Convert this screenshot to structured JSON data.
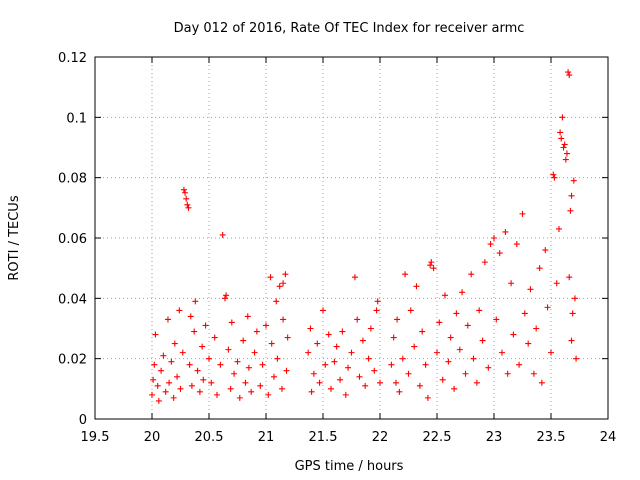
{
  "chart_data": {
    "type": "scatter",
    "title": "Day 012 of 2016, Rate Of TEC Index for receiver armc",
    "xlabel": "GPS time / hours",
    "ylabel": "ROTI / TECUs",
    "xlim": [
      19.5,
      24
    ],
    "ylim": [
      0,
      0.12
    ],
    "xticks": [
      "19.5",
      "20",
      "20.5",
      "21",
      "21.5",
      "22",
      "22.5",
      "23",
      "23.5",
      "24"
    ],
    "yticks": [
      "0",
      "0.02",
      "0.04",
      "0.06",
      "0.08",
      "0.1",
      "0.12"
    ],
    "grid": true,
    "marker": "plus",
    "series": [
      {
        "color": "#ff0000",
        "points": [
          [
            20.0,
            0.008
          ],
          [
            20.01,
            0.013
          ],
          [
            20.02,
            0.018
          ],
          [
            20.03,
            0.028
          ],
          [
            20.05,
            0.011
          ],
          [
            20.06,
            0.006
          ],
          [
            20.08,
            0.016
          ],
          [
            20.1,
            0.021
          ],
          [
            20.12,
            0.009
          ],
          [
            20.14,
            0.033
          ],
          [
            20.15,
            0.012
          ],
          [
            20.17,
            0.019
          ],
          [
            20.19,
            0.007
          ],
          [
            20.2,
            0.025
          ],
          [
            20.22,
            0.014
          ],
          [
            20.24,
            0.036
          ],
          [
            20.25,
            0.01
          ],
          [
            20.27,
            0.022
          ],
          [
            20.28,
            0.076
          ],
          [
            20.29,
            0.075
          ],
          [
            20.3,
            0.073
          ],
          [
            20.31,
            0.071
          ],
          [
            20.32,
            0.07
          ],
          [
            20.33,
            0.018
          ],
          [
            20.34,
            0.034
          ],
          [
            20.35,
            0.011
          ],
          [
            20.37,
            0.029
          ],
          [
            20.38,
            0.039
          ],
          [
            20.4,
            0.016
          ],
          [
            20.42,
            0.009
          ],
          [
            20.44,
            0.024
          ],
          [
            20.45,
            0.013
          ],
          [
            20.47,
            0.031
          ],
          [
            20.5,
            0.02
          ],
          [
            20.52,
            0.012
          ],
          [
            20.55,
            0.027
          ],
          [
            20.57,
            0.008
          ],
          [
            20.6,
            0.018
          ],
          [
            20.62,
            0.061
          ],
          [
            20.64,
            0.04
          ],
          [
            20.65,
            0.041
          ],
          [
            20.67,
            0.023
          ],
          [
            20.69,
            0.01
          ],
          [
            20.7,
            0.032
          ],
          [
            20.72,
            0.015
          ],
          [
            20.75,
            0.019
          ],
          [
            20.77,
            0.007
          ],
          [
            20.8,
            0.026
          ],
          [
            20.82,
            0.012
          ],
          [
            20.84,
            0.034
          ],
          [
            20.85,
            0.017
          ],
          [
            20.87,
            0.009
          ],
          [
            20.9,
            0.022
          ],
          [
            20.92,
            0.029
          ],
          [
            20.95,
            0.011
          ],
          [
            20.97,
            0.018
          ],
          [
            21.0,
            0.031
          ],
          [
            21.02,
            0.008
          ],
          [
            21.04,
            0.047
          ],
          [
            21.05,
            0.025
          ],
          [
            21.07,
            0.014
          ],
          [
            21.09,
            0.039
          ],
          [
            21.1,
            0.02
          ],
          [
            21.12,
            0.044
          ],
          [
            21.14,
            0.01
          ],
          [
            21.15,
            0.033
          ],
          [
            21.17,
            0.048
          ],
          [
            21.18,
            0.016
          ],
          [
            21.19,
            0.027
          ],
          [
            21.15,
            0.045
          ],
          [
            21.37,
            0.022
          ],
          [
            21.39,
            0.03
          ],
          [
            21.4,
            0.009
          ],
          [
            21.42,
            0.015
          ],
          [
            21.45,
            0.025
          ],
          [
            21.47,
            0.012
          ],
          [
            21.5,
            0.036
          ],
          [
            21.52,
            0.018
          ],
          [
            21.55,
            0.028
          ],
          [
            21.57,
            0.01
          ],
          [
            21.6,
            0.019
          ],
          [
            21.62,
            0.024
          ],
          [
            21.65,
            0.013
          ],
          [
            21.67,
            0.029
          ],
          [
            21.7,
            0.008
          ],
          [
            21.72,
            0.017
          ],
          [
            21.75,
            0.022
          ],
          [
            21.78,
            0.047
          ],
          [
            21.8,
            0.033
          ],
          [
            21.82,
            0.014
          ],
          [
            21.85,
            0.026
          ],
          [
            21.87,
            0.011
          ],
          [
            21.9,
            0.02
          ],
          [
            21.92,
            0.03
          ],
          [
            21.95,
            0.016
          ],
          [
            21.97,
            0.036
          ],
          [
            21.98,
            0.039
          ],
          [
            22.0,
            0.012
          ],
          [
            22.1,
            0.018
          ],
          [
            22.12,
            0.027
          ],
          [
            22.14,
            0.012
          ],
          [
            22.15,
            0.033
          ],
          [
            22.17,
            0.009
          ],
          [
            22.2,
            0.02
          ],
          [
            22.22,
            0.048
          ],
          [
            22.25,
            0.015
          ],
          [
            22.27,
            0.036
          ],
          [
            22.3,
            0.024
          ],
          [
            22.32,
            0.044
          ],
          [
            22.35,
            0.011
          ],
          [
            22.37,
            0.029
          ],
          [
            22.4,
            0.018
          ],
          [
            22.42,
            0.007
          ],
          [
            22.44,
            0.051
          ],
          [
            22.45,
            0.052
          ],
          [
            22.47,
            0.05
          ],
          [
            22.5,
            0.022
          ],
          [
            22.52,
            0.032
          ],
          [
            22.55,
            0.013
          ],
          [
            22.57,
            0.041
          ],
          [
            22.6,
            0.019
          ],
          [
            22.62,
            0.027
          ],
          [
            22.65,
            0.01
          ],
          [
            22.67,
            0.035
          ],
          [
            22.7,
            0.023
          ],
          [
            22.72,
            0.042
          ],
          [
            22.75,
            0.015
          ],
          [
            22.77,
            0.031
          ],
          [
            22.8,
            0.048
          ],
          [
            22.82,
            0.02
          ],
          [
            22.85,
            0.012
          ],
          [
            22.87,
            0.036
          ],
          [
            22.9,
            0.026
          ],
          [
            22.92,
            0.052
          ],
          [
            22.95,
            0.017
          ],
          [
            22.97,
            0.058
          ],
          [
            23.0,
            0.06
          ],
          [
            23.02,
            0.033
          ],
          [
            23.05,
            0.055
          ],
          [
            23.07,
            0.022
          ],
          [
            23.1,
            0.062
          ],
          [
            23.12,
            0.015
          ],
          [
            23.15,
            0.045
          ],
          [
            23.17,
            0.028
          ],
          [
            23.2,
            0.058
          ],
          [
            23.22,
            0.018
          ],
          [
            23.25,
            0.068
          ],
          [
            23.27,
            0.035
          ],
          [
            23.3,
            0.025
          ],
          [
            23.32,
            0.043
          ],
          [
            23.35,
            0.015
          ],
          [
            23.37,
            0.03
          ],
          [
            23.4,
            0.05
          ],
          [
            23.42,
            0.012
          ],
          [
            23.45,
            0.056
          ],
          [
            23.47,
            0.037
          ],
          [
            23.5,
            0.022
          ],
          [
            23.52,
            0.081
          ],
          [
            23.53,
            0.08
          ],
          [
            23.55,
            0.045
          ],
          [
            23.57,
            0.063
          ],
          [
            23.58,
            0.095
          ],
          [
            23.59,
            0.093
          ],
          [
            23.6,
            0.1
          ],
          [
            23.61,
            0.09
          ],
          [
            23.62,
            0.091
          ],
          [
            23.63,
            0.086
          ],
          [
            23.64,
            0.088
          ],
          [
            23.65,
            0.115
          ],
          [
            23.66,
            0.114
          ],
          [
            23.67,
            0.069
          ],
          [
            23.68,
            0.074
          ],
          [
            23.69,
            0.035
          ],
          [
            23.7,
            0.079
          ],
          [
            23.71,
            0.04
          ],
          [
            23.72,
            0.02
          ],
          [
            23.66,
            0.047
          ],
          [
            23.68,
            0.026
          ]
        ]
      }
    ]
  }
}
